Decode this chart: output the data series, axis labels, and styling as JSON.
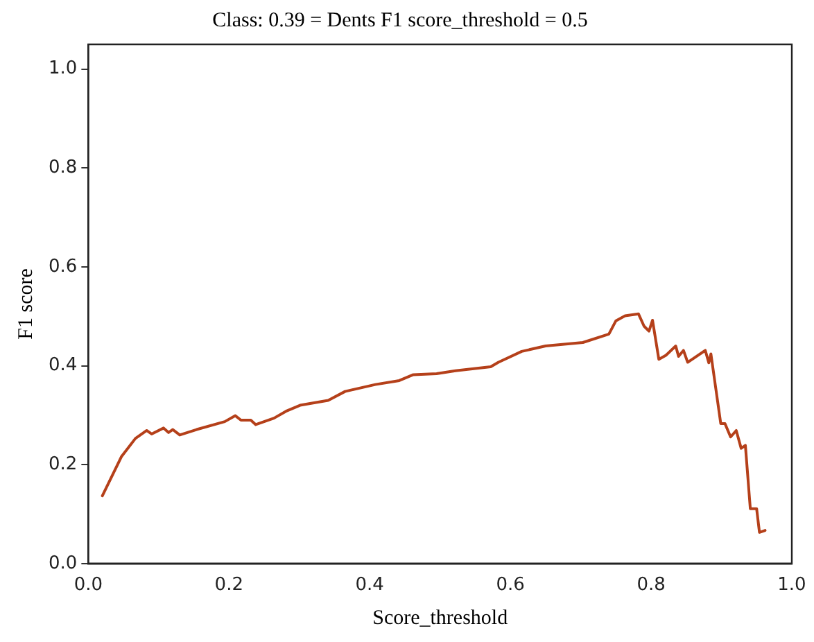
{
  "chart_data": {
    "type": "line",
    "title": "Class: 0.39 = Dents F1 score_threshold = 0.5",
    "xlabel": "Score_threshold",
    "ylabel": "F1 score",
    "xlim": [
      0,
      1
    ],
    "xticks": [
      {
        "value": 0,
        "label": "0.0"
      },
      0.2,
      0.4,
      0.6,
      0.8,
      {
        "value": 1,
        "label": "1.0"
      }
    ],
    "ylim": [
      0,
      1.05
    ],
    "yticks": [
      {
        "value": 0,
        "label": "0.0"
      },
      0.2,
      0.4,
      0.6,
      0.8,
      {
        "value": 1,
        "label": "1.0"
      }
    ],
    "grid": false,
    "legend": false,
    "marker": "none",
    "line_style": "solid",
    "series": [
      {
        "color": "#b5401a",
        "x": [
          0.02,
          0.047,
          0.067,
          0.083,
          0.09,
          0.107,
          0.114,
          0.12,
          0.13,
          0.154,
          0.194,
          0.209,
          0.217,
          0.231,
          0.238,
          0.264,
          0.281,
          0.301,
          0.341,
          0.365,
          0.408,
          0.442,
          0.462,
          0.495,
          0.522,
          0.572,
          0.583,
          0.616,
          0.65,
          0.703,
          0.74,
          0.75,
          0.763,
          0.782,
          0.79,
          0.797,
          0.802,
          0.811,
          0.821,
          0.835,
          0.839,
          0.846,
          0.852,
          0.877,
          0.882,
          0.885,
          0.899,
          0.905,
          0.913,
          0.921,
          0.928,
          0.934,
          0.941,
          0.95,
          0.954,
          0.962
        ],
        "values": [
          0.137,
          0.216,
          0.253,
          0.269,
          0.262,
          0.274,
          0.265,
          0.271,
          0.26,
          0.271,
          0.287,
          0.299,
          0.29,
          0.29,
          0.281,
          0.294,
          0.308,
          0.32,
          0.33,
          0.348,
          0.362,
          0.37,
          0.382,
          0.384,
          0.39,
          0.398,
          0.407,
          0.429,
          0.44,
          0.447,
          0.464,
          0.491,
          0.501,
          0.505,
          0.48,
          0.47,
          0.492,
          0.413,
          0.421,
          0.44,
          0.419,
          0.431,
          0.407,
          0.431,
          0.406,
          0.424,
          0.283,
          0.283,
          0.256,
          0.269,
          0.233,
          0.239,
          0.111,
          0.111,
          0.063,
          0.067
        ]
      }
    ]
  }
}
